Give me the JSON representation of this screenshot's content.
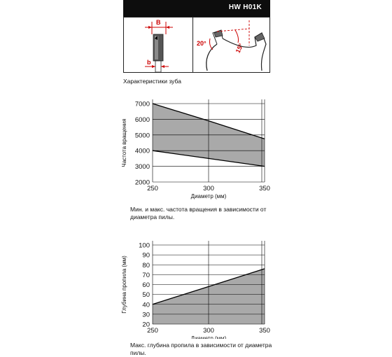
{
  "header": {
    "title": "HW H01K"
  },
  "tooth_diagram": {
    "label_B": "B",
    "label_b": "b",
    "angle_1": "20°",
    "angle_2": "15°",
    "caption": "Характеристики зуба"
  },
  "captions": {
    "rpm": "Мин. и макс. частота вращения в зависимости от диаметра пилы.",
    "depth": "Макс. глубина пропила в зависимости от диаметра пилы."
  },
  "colors": {
    "fill": "#a9a9a9",
    "line": "#000000",
    "accent": "#cc0000"
  },
  "chart_data": [
    {
      "type": "area",
      "xlabel": "Диаметр (мм)",
      "ylabel": "Частота вращения",
      "x_ticks": [
        250,
        300,
        350
      ],
      "y_ticks": [
        7000,
        6000,
        5000,
        4000,
        3000,
        2000
      ],
      "xlim": [
        250,
        350
      ],
      "ylim": [
        2000,
        7000
      ],
      "grid": true,
      "series": [
        {
          "x": [
            250,
            300,
            350
          ],
          "values": [
            7000,
            5900,
            4750
          ]
        },
        {
          "x": [
            250,
            300,
            350
          ],
          "values": [
            4000,
            3500,
            3000
          ]
        }
      ]
    },
    {
      "type": "area",
      "xlabel": "Диаметр (мм)",
      "ylabel": "Глубина пропила (мм)",
      "x_ticks": [
        250,
        300,
        350
      ],
      "y_ticks": [
        100,
        90,
        80,
        70,
        60,
        50,
        40,
        30,
        20
      ],
      "xlim": [
        250,
        350
      ],
      "ylim": [
        20,
        100
      ],
      "grid": true,
      "series": [
        {
          "x": [
            250,
            300,
            350
          ],
          "values": [
            40,
            58,
            76
          ]
        }
      ]
    }
  ]
}
